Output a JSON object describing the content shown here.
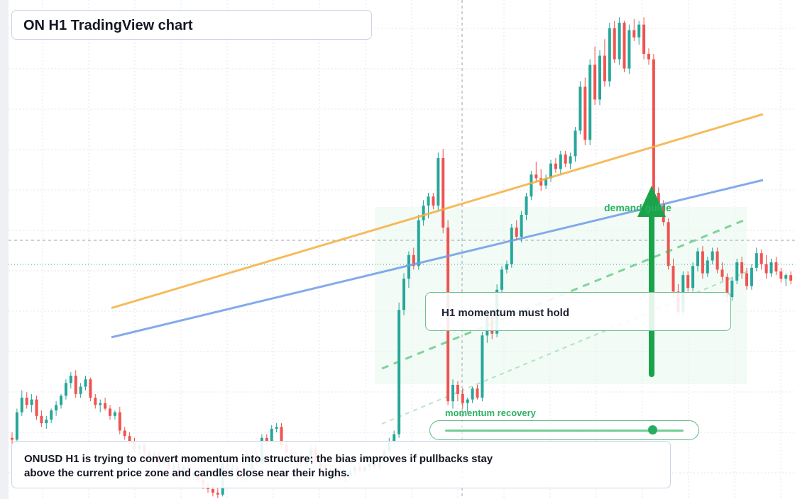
{
  "title": "ON H1 TradingView chart",
  "callout": "H1 momentum must hold",
  "demand_label": "demand guide",
  "momentum_label": "momentum recovery",
  "momentum_level": 0.87,
  "caption": "ONUSD H1 is trying to convert momentum into structure; the bias improves if pullbacks stay above the current price zone and candles close near their highs.",
  "colors": {
    "up": "#26a69a",
    "down": "#ef5350",
    "accent_green": "#1aa34a",
    "orange_line": "#f5b041",
    "blue_line": "#6f9ce8",
    "grid": "#e3e6ec"
  },
  "icons": [
    "up-arrow-icon"
  ],
  "chart_data": {
    "type": "candlestick",
    "symbol": "ONUSD",
    "timeframe": "H1",
    "grid": true,
    "candles": [
      [
        0.28,
        0.31,
        0.24,
        0.27
      ],
      [
        0.27,
        0.44,
        0.26,
        0.42
      ],
      [
        0.42,
        0.54,
        0.4,
        0.5
      ],
      [
        0.5,
        0.53,
        0.44,
        0.46
      ],
      [
        0.46,
        0.52,
        0.42,
        0.49
      ],
      [
        0.49,
        0.51,
        0.38,
        0.4
      ],
      [
        0.4,
        0.43,
        0.34,
        0.36
      ],
      [
        0.36,
        0.4,
        0.33,
        0.38
      ],
      [
        0.38,
        0.44,
        0.36,
        0.43
      ],
      [
        0.43,
        0.48,
        0.4,
        0.46
      ],
      [
        0.46,
        0.52,
        0.44,
        0.51
      ],
      [
        0.51,
        0.6,
        0.49,
        0.58
      ],
      [
        0.58,
        0.64,
        0.55,
        0.62
      ],
      [
        0.62,
        0.65,
        0.5,
        0.52
      ],
      [
        0.52,
        0.58,
        0.5,
        0.56
      ],
      [
        0.56,
        0.62,
        0.54,
        0.6
      ],
      [
        0.6,
        0.61,
        0.48,
        0.5
      ],
      [
        0.5,
        0.52,
        0.44,
        0.46
      ],
      [
        0.46,
        0.49,
        0.42,
        0.47
      ],
      [
        0.47,
        0.5,
        0.43,
        0.44
      ],
      [
        0.44,
        0.46,
        0.38,
        0.4
      ],
      [
        0.4,
        0.43,
        0.38,
        0.42
      ],
      [
        0.42,
        0.45,
        0.3,
        0.32
      ],
      [
        0.32,
        0.34,
        0.27,
        0.29
      ],
      [
        0.29,
        0.31,
        0.24,
        0.26
      ],
      [
        0.26,
        0.28,
        0.2,
        0.22
      ],
      [
        0.22,
        0.25,
        0.19,
        0.24
      ],
      [
        0.24,
        0.25,
        0.18,
        0.2
      ],
      [
        0.2,
        0.22,
        0.16,
        0.18
      ],
      [
        0.18,
        0.21,
        0.15,
        0.19
      ],
      [
        0.19,
        0.2,
        0.12,
        0.14
      ],
      [
        0.14,
        0.17,
        0.12,
        0.16
      ],
      [
        0.16,
        0.18,
        0.09,
        0.11
      ],
      [
        0.11,
        0.14,
        0.09,
        0.13
      ],
      [
        0.13,
        0.15,
        0.08,
        0.1
      ],
      [
        0.1,
        0.13,
        0.09,
        0.12
      ],
      [
        0.12,
        0.13,
        0.05,
        0.07
      ],
      [
        0.07,
        0.1,
        0.05,
        0.09
      ],
      [
        0.09,
        0.1,
        0.03,
        0.05
      ],
      [
        0.05,
        0.07,
        0.0,
        0.02
      ],
      [
        0.02,
        0.04,
        -0.02,
        0.0
      ],
      [
        0.0,
        0.03,
        -0.04,
        -0.02
      ],
      [
        -0.02,
        0.01,
        -0.05,
        -0.03
      ],
      [
        -0.03,
        0.16,
        -0.04,
        0.14
      ],
      [
        0.14,
        0.16,
        0.08,
        0.1
      ],
      [
        0.1,
        0.14,
        0.08,
        0.12
      ],
      [
        0.12,
        0.13,
        0.05,
        0.07
      ],
      [
        0.07,
        0.09,
        0.04,
        0.06
      ],
      [
        0.06,
        0.12,
        0.05,
        0.11
      ],
      [
        0.11,
        0.18,
        0.1,
        0.17
      ],
      [
        0.17,
        0.2,
        0.13,
        0.14
      ],
      [
        0.14,
        0.3,
        0.13,
        0.28
      ],
      [
        0.28,
        0.3,
        0.24,
        0.26
      ],
      [
        0.26,
        0.35,
        0.25,
        0.33
      ],
      [
        0.33,
        0.36,
        0.31,
        0.34
      ],
      [
        0.34,
        0.36,
        0.22,
        0.24
      ],
      [
        0.24,
        0.26,
        0.18,
        0.2
      ],
      [
        0.2,
        0.22,
        0.15,
        0.17
      ],
      [
        0.17,
        0.2,
        0.15,
        0.18
      ],
      [
        0.18,
        0.2,
        0.12,
        0.14
      ],
      [
        0.14,
        0.17,
        0.12,
        0.16
      ],
      [
        0.16,
        0.24,
        0.15,
        0.22
      ],
      [
        0.22,
        0.24,
        0.14,
        0.15
      ],
      [
        0.15,
        0.17,
        0.1,
        0.12
      ],
      [
        0.12,
        0.14,
        0.08,
        0.1
      ],
      [
        0.1,
        0.12,
        0.05,
        0.07
      ],
      [
        0.07,
        0.1,
        0.05,
        0.09
      ],
      [
        0.09,
        0.11,
        0.05,
        0.06
      ],
      [
        0.06,
        0.09,
        0.04,
        0.08
      ],
      [
        0.08,
        0.11,
        0.06,
        0.1
      ],
      [
        0.1,
        0.13,
        0.07,
        0.12
      ],
      [
        0.12,
        0.14,
        0.09,
        0.1
      ],
      [
        0.1,
        0.13,
        0.09,
        0.12
      ],
      [
        0.12,
        0.15,
        0.1,
        0.14
      ],
      [
        0.14,
        0.16,
        0.11,
        0.12
      ],
      [
        0.12,
        0.16,
        0.11,
        0.15
      ],
      [
        0.15,
        0.22,
        0.14,
        0.21
      ],
      [
        0.21,
        0.28,
        0.19,
        0.26
      ],
      [
        0.26,
        0.32,
        0.24,
        0.3
      ],
      [
        0.3,
        1.02,
        0.28,
        0.98
      ],
      [
        0.98,
        1.18,
        0.95,
        1.15
      ],
      [
        1.15,
        1.3,
        1.1,
        1.28
      ],
      [
        1.28,
        1.32,
        1.2,
        1.22
      ],
      [
        1.22,
        1.5,
        1.2,
        1.47
      ],
      [
        1.47,
        1.58,
        1.44,
        1.55
      ],
      [
        1.55,
        1.62,
        1.48,
        1.6
      ],
      [
        1.6,
        1.62,
        1.53,
        1.55
      ],
      [
        1.55,
        1.84,
        1.52,
        1.81
      ],
      [
        1.81,
        1.86,
        1.4,
        1.43
      ],
      [
        1.43,
        1.47,
        0.46,
        0.48
      ],
      [
        0.48,
        0.6,
        0.44,
        0.57
      ],
      [
        0.57,
        0.59,
        0.48,
        0.52
      ],
      [
        0.52,
        0.55,
        0.44,
        0.47
      ],
      [
        0.47,
        0.5,
        0.42,
        0.49
      ],
      [
        0.49,
        0.56,
        0.47,
        0.55
      ],
      [
        0.55,
        0.57,
        0.49,
        0.5
      ],
      [
        0.5,
        0.86,
        0.48,
        0.84
      ],
      [
        0.84,
        0.97,
        0.8,
        0.95
      ],
      [
        0.95,
        0.98,
        0.82,
        0.85
      ],
      [
        0.85,
        1.12,
        0.83,
        1.09
      ],
      [
        1.09,
        1.22,
        1.07,
        1.2
      ],
      [
        1.2,
        1.25,
        1.18,
        1.23
      ],
      [
        1.23,
        1.45,
        1.21,
        1.43
      ],
      [
        1.43,
        1.47,
        1.36,
        1.38
      ],
      [
        1.38,
        1.52,
        1.35,
        1.5
      ],
      [
        1.5,
        1.62,
        1.47,
        1.6
      ],
      [
        1.6,
        1.74,
        1.58,
        1.72
      ],
      [
        1.72,
        1.79,
        1.68,
        1.7
      ],
      [
        1.7,
        1.75,
        1.63,
        1.66
      ],
      [
        1.66,
        1.72,
        1.64,
        1.7
      ],
      [
        1.7,
        1.8,
        1.68,
        1.78
      ],
      [
        1.78,
        1.81,
        1.73,
        1.75
      ],
      [
        1.75,
        1.85,
        1.72,
        1.83
      ],
      [
        1.83,
        1.85,
        1.76,
        1.78
      ],
      [
        1.78,
        1.84,
        1.75,
        1.82
      ],
      [
        1.82,
        1.98,
        1.79,
        1.96
      ],
      [
        1.96,
        2.23,
        1.94,
        2.2
      ],
      [
        2.2,
        2.25,
        1.88,
        1.91
      ],
      [
        1.91,
        2.35,
        1.88,
        2.32
      ],
      [
        2.32,
        2.42,
        2.1,
        2.13
      ],
      [
        2.13,
        2.4,
        2.1,
        2.37
      ],
      [
        2.37,
        2.46,
        2.2,
        2.23
      ],
      [
        2.23,
        2.55,
        2.2,
        2.52
      ],
      [
        2.52,
        2.56,
        2.33,
        2.35
      ],
      [
        2.35,
        2.58,
        2.32,
        2.55
      ],
      [
        2.55,
        2.56,
        2.28,
        2.3
      ],
      [
        2.3,
        2.54,
        2.27,
        2.51
      ],
      [
        2.51,
        2.57,
        2.45,
        2.47
      ],
      [
        2.47,
        2.56,
        2.43,
        2.54
      ],
      [
        2.54,
        2.58,
        2.35,
        2.38
      ],
      [
        2.38,
        2.41,
        2.32,
        2.35
      ],
      [
        2.35,
        2.38,
        1.6,
        1.62
      ],
      [
        1.62,
        1.65,
        1.52,
        1.55
      ],
      [
        1.55,
        1.58,
        1.44,
        1.46
      ],
      [
        1.46,
        1.48,
        1.2,
        1.22
      ],
      [
        1.22,
        1.26,
        1.05,
        1.08
      ],
      [
        1.08,
        1.12,
        0.95,
        0.97
      ],
      [
        0.97,
        1.19,
        0.95,
        1.17
      ],
      [
        1.17,
        1.19,
        1.08,
        1.1
      ],
      [
        1.1,
        1.24,
        1.08,
        1.22
      ],
      [
        1.22,
        1.32,
        1.19,
        1.3
      ],
      [
        1.3,
        1.33,
        1.15,
        1.18
      ],
      [
        1.18,
        1.27,
        1.16,
        1.25
      ],
      [
        1.25,
        1.32,
        1.23,
        1.3
      ],
      [
        1.3,
        1.32,
        1.18,
        1.2
      ],
      [
        1.2,
        1.24,
        1.14,
        1.16
      ],
      [
        1.16,
        1.18,
        1.02,
        1.05
      ],
      [
        1.05,
        1.16,
        1.03,
        1.14
      ],
      [
        1.14,
        1.26,
        1.12,
        1.24
      ],
      [
        1.24,
        1.27,
        1.15,
        1.18
      ],
      [
        1.18,
        1.21,
        1.09,
        1.11
      ],
      [
        1.11,
        1.23,
        1.09,
        1.21
      ],
      [
        1.21,
        1.32,
        1.19,
        1.29
      ],
      [
        1.29,
        1.31,
        1.2,
        1.23
      ],
      [
        1.23,
        1.28,
        1.15,
        1.18
      ],
      [
        1.18,
        1.26,
        1.16,
        1.24
      ],
      [
        1.24,
        1.27,
        1.17,
        1.19
      ],
      [
        1.19,
        1.21,
        1.13,
        1.15
      ],
      [
        1.15,
        1.18,
        1.11,
        1.17
      ],
      [
        1.17,
        1.19,
        1.12,
        1.14
      ]
    ],
    "trendlines": [
      {
        "color": "orange",
        "from": [
          0,
          0.99
        ],
        "to": [
          155,
          2.05
        ]
      },
      {
        "color": "blue",
        "from": [
          0,
          0.83
        ],
        "to": [
          155,
          1.69
        ]
      }
    ],
    "current_price_line": 1.15,
    "crosshair_price": 1.32,
    "demand_zone": [
      0.55,
      1.45
    ]
  }
}
